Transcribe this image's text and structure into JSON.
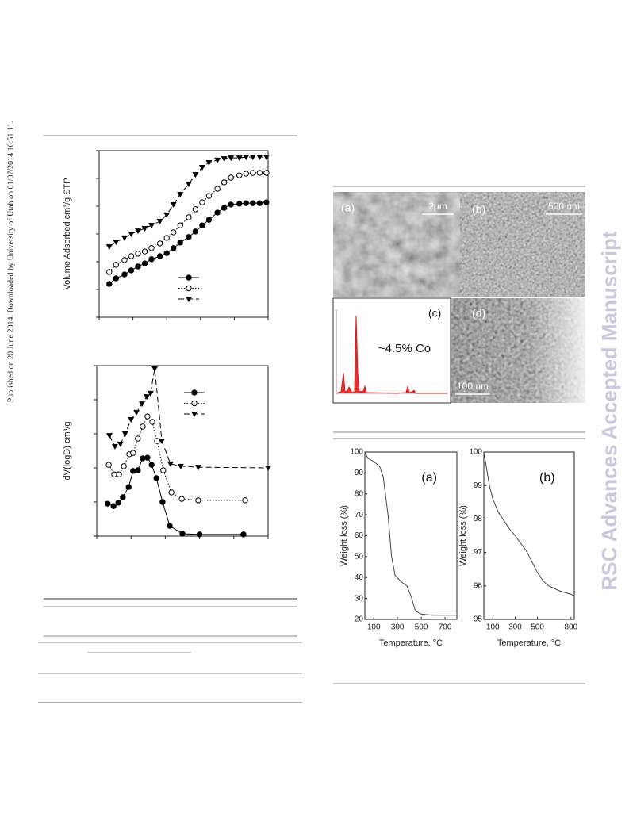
{
  "side_note": "Published on 20 June 2014. Downloaded by University of Utah on 01/07/2014 16:51:11.",
  "watermark": "RSC Advances Accepted Manuscript",
  "micrographs": {
    "a": {
      "label": "(a)",
      "scale": "2μm"
    },
    "b": {
      "label": "(b)",
      "scale": "500 nm"
    },
    "c": {
      "label": "(c)",
      "text": "~4.5% Co"
    },
    "d": {
      "label": "(d)",
      "scale": "100 nm"
    }
  },
  "chart_data": [
    {
      "type": "line",
      "y_label": "Volume Adsorbed cm³/g STP",
      "xlim": [
        0,
        1
      ],
      "xticks": [
        0,
        0.2,
        0.4,
        0.6,
        0.8,
        1
      ],
      "ylim": [
        0,
        6
      ],
      "yticks": [
        0,
        1,
        2,
        3,
        4,
        5,
        6
      ],
      "tick_labels": false,
      "series": [
        {
          "color": "#000000",
          "marker": "filled-circle",
          "dash": "solid",
          "x": [
            0.06,
            0.1,
            0.15,
            0.19,
            0.23,
            0.27,
            0.31,
            0.36,
            0.4,
            0.44,
            0.48,
            0.53,
            0.57,
            0.61,
            0.65,
            0.7,
            0.74,
            0.78,
            0.83,
            0.87,
            0.91,
            0.95,
            0.99
          ],
          "values": [
            1.2,
            1.4,
            1.54,
            1.69,
            1.83,
            1.94,
            2.09,
            2.2,
            2.31,
            2.49,
            2.69,
            2.89,
            3.09,
            3.31,
            3.51,
            3.77,
            3.94,
            4.06,
            4.09,
            4.11,
            4.11,
            4.11,
            4.14
          ]
        },
        {
          "color": "#000000",
          "marker": "open-circle",
          "dash": "dotted",
          "x": [
            0.06,
            0.1,
            0.15,
            0.19,
            0.23,
            0.27,
            0.31,
            0.36,
            0.4,
            0.44,
            0.48,
            0.53,
            0.57,
            0.61,
            0.65,
            0.7,
            0.74,
            0.78,
            0.83,
            0.87,
            0.91,
            0.95,
            0.99
          ],
          "values": [
            1.63,
            1.89,
            2.06,
            2.2,
            2.29,
            2.37,
            2.49,
            2.66,
            2.86,
            3.06,
            3.31,
            3.6,
            3.89,
            4.14,
            4.37,
            4.63,
            4.86,
            5.03,
            5.11,
            5.17,
            5.2,
            5.2,
            5.2
          ]
        },
        {
          "color": "#000000",
          "marker": "triangle-down",
          "dash": "dashed",
          "x": [
            0.06,
            0.1,
            0.15,
            0.19,
            0.23,
            0.27,
            0.31,
            0.36,
            0.4,
            0.44,
            0.48,
            0.53,
            0.57,
            0.61,
            0.65,
            0.7,
            0.74,
            0.78,
            0.83,
            0.87,
            0.91,
            0.95,
            0.99
          ],
          "values": [
            2.54,
            2.71,
            2.86,
            3.0,
            3.11,
            3.2,
            3.31,
            3.46,
            3.69,
            4.06,
            4.43,
            4.8,
            5.14,
            5.4,
            5.57,
            5.66,
            5.71,
            5.74,
            5.74,
            5.77,
            5.77,
            5.77,
            5.77
          ]
        }
      ]
    },
    {
      "type": "line",
      "y_label": "dV(logD) cm³/g",
      "xlim": [
        0,
        5
      ],
      "xticks": [
        0,
        1,
        2,
        3,
        4,
        5
      ],
      "ylim": [
        0,
        5
      ],
      "yticks": [
        0,
        1,
        2,
        3,
        4,
        5
      ],
      "tick_labels": false,
      "series": [
        {
          "color": "#000000",
          "marker": "filled-circle",
          "dash": "solid",
          "x": [
            0.32,
            0.49,
            0.63,
            0.76,
            0.93,
            1.06,
            1.2,
            1.34,
            1.48,
            1.6,
            1.74,
            1.92,
            2.13,
            2.5,
            3.0,
            4.28
          ],
          "values": [
            0.95,
            0.88,
            0.98,
            1.14,
            1.44,
            1.91,
            1.93,
            2.28,
            2.3,
            2.09,
            1.7,
            1.0,
            0.3,
            0.07,
            0.05,
            0.05
          ]
        },
        {
          "color": "#000000",
          "marker": "open-circle",
          "dash": "dotted",
          "x": [
            0.35,
            0.51,
            0.65,
            0.79,
            0.95,
            1.06,
            1.2,
            1.34,
            1.48,
            1.62,
            1.76,
            1.94,
            2.18,
            2.48,
            2.96,
            4.33
          ],
          "values": [
            2.09,
            1.81,
            1.81,
            2.05,
            2.4,
            2.44,
            2.86,
            3.21,
            3.51,
            3.35,
            2.79,
            1.93,
            1.28,
            1.09,
            1.05,
            1.05
          ]
        },
        {
          "color": "#000000",
          "marker": "triangle-down",
          "dash": "dashed",
          "x": [
            0.37,
            0.53,
            0.69,
            0.83,
            1.0,
            1.16,
            1.32,
            1.46,
            1.57,
            1.69,
            1.9,
            2.15,
            2.45,
            2.96,
            5.0
          ],
          "values": [
            2.95,
            2.63,
            2.7,
            3.0,
            3.42,
            3.63,
            3.88,
            4.09,
            4.19,
            4.91,
            2.79,
            2.12,
            2.05,
            2.02,
            2.0
          ]
        }
      ]
    },
    {
      "type": "line",
      "panel_label": "(a)",
      "x_label": "Temperature, °C",
      "y_label": "Weight loss (%)",
      "xlim": [
        25,
        800
      ],
      "xticks": [
        100,
        300,
        500,
        700
      ],
      "ylim": [
        20,
        100
      ],
      "yticks": [
        20,
        30,
        40,
        50,
        60,
        70,
        80,
        90,
        100
      ],
      "tick_labels": true,
      "series": [
        {
          "color": "#444444",
          "marker": "none",
          "dash": "solid",
          "x": [
            25,
            50,
            100,
            150,
            180,
            220,
            250,
            280,
            330,
            380,
            420,
            450,
            500,
            600,
            700,
            800
          ],
          "values": [
            100,
            97,
            95.5,
            93,
            88,
            70,
            50,
            41,
            38,
            36,
            30,
            24,
            22.5,
            22,
            22,
            22
          ]
        }
      ]
    },
    {
      "type": "line",
      "panel_label": "(b)",
      "x_label": "Temperature, °C",
      "y_label": "Weight loss (%)",
      "xlim": [
        20,
        830
      ],
      "xticks": [
        100,
        300,
        500,
        800
      ],
      "ylim": [
        95,
        100
      ],
      "yticks": [
        95,
        96,
        97,
        98,
        99,
        100
      ],
      "tick_labels": true,
      "series": [
        {
          "color": "#444444",
          "marker": "none",
          "dash": "solid",
          "x": [
            20,
            40,
            70,
            100,
            150,
            200,
            250,
            300,
            400,
            500,
            550,
            600,
            700,
            800,
            830
          ],
          "values": [
            100,
            99.6,
            99.0,
            98.6,
            98.2,
            97.95,
            97.7,
            97.5,
            97.05,
            96.4,
            96.15,
            96.0,
            95.85,
            95.75,
            95.7
          ]
        }
      ]
    }
  ]
}
